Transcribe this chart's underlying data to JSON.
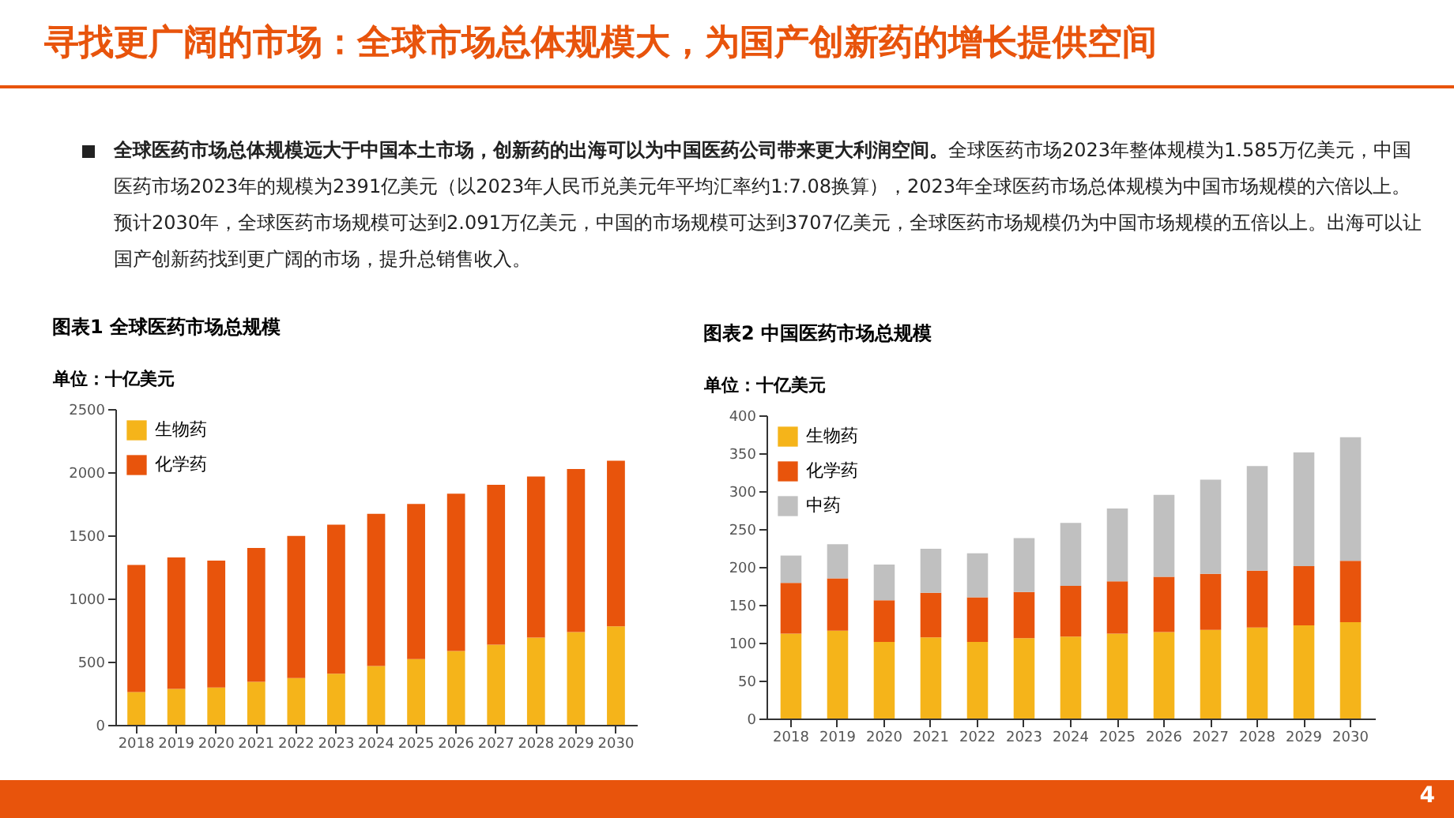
{
  "chart_data": [
    {
      "type": "bar",
      "stacked": true,
      "title": "图表1 全球医药市场总规模",
      "ylabel": "单位：十亿美元",
      "annotations": [
        "寻找更广阔的市场：全球市场总体规模大，为国产创新药的增长提供空间",
        "全球医药市场总体规模远大于中国本土市场，创新药的出海可以为中国医药公司带来更大利润空间。",
        "全球医药市场2023年整体规模为1.585万亿美元，中国医药市场2023年的规模为2391亿美元（以2023年人民币兑美元年平均汇率约1:7.08换算），2023年全球医药市场总体规模为中国市场规模的六倍以上。预计2030年，全球医药市场规模可达到2.091万亿美元，中国的市场规模可达到3707亿美元，全球医药市场规模仍为中国市场规模的五倍以上。出海可以让国产创新药找到更广阔的市场，提升总销售收入。"
      ],
      "categories": [
        "2018",
        "2019",
        "2020",
        "2021",
        "2022",
        "2023",
        "2024",
        "2025",
        "2026",
        "2027",
        "2028",
        "2029",
        "2030"
      ],
      "series": [
        {
          "name": "生物药",
          "color": "#f5b41a",
          "values": [
            260,
            285,
            295,
            340,
            370,
            405,
            465,
            520,
            585,
            635,
            690,
            735,
            780
          ]
        },
        {
          "name": "化学药",
          "color": "#e8540c",
          "values": [
            1005,
            1040,
            1005,
            1060,
            1125,
            1180,
            1205,
            1228,
            1245,
            1265,
            1275,
            1290,
            1311
          ]
        }
      ],
      "ylim": [
        0,
        2500
      ],
      "yticks": [
        0,
        500,
        1000,
        1500,
        2000,
        2500
      ],
      "grid": false,
      "legend": "top left"
    },
    {
      "type": "bar",
      "stacked": true,
      "title": "图表2 中国医药市场总规模",
      "ylabel": "单位：十亿美元",
      "annotations": [
        "4"
      ],
      "categories": [
        "2018",
        "2019",
        "2020",
        "2021",
        "2022",
        "2023",
        "2024",
        "2025",
        "2026",
        "2027",
        "2028",
        "2029",
        "2030"
      ],
      "series": [
        {
          "name": "生物药",
          "color": "#f5b41a",
          "values": [
            112,
            116,
            101,
            107,
            101,
            106,
            108,
            112,
            114,
            117,
            120,
            123,
            127
          ]
        },
        {
          "name": "化学药",
          "color": "#e8540c",
          "values": [
            67,
            69,
            55,
            59,
            59,
            61,
            67,
            69,
            73,
            74,
            75,
            78,
            81
          ]
        },
        {
          "name": "中药",
          "color": "#c0c0c0",
          "values": [
            36,
            45,
            47,
            58,
            58,
            71,
            83,
            96,
            108,
            124,
            138,
            150,
            163
          ]
        }
      ],
      "ylim": [
        0,
        400
      ],
      "yticks": [
        0,
        50,
        100,
        150,
        200,
        250,
        300,
        350,
        400
      ],
      "grid": false,
      "legend": "top left"
    }
  ]
}
